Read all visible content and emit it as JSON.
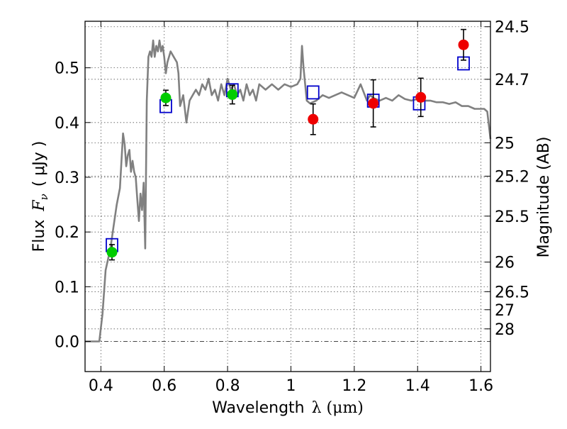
{
  "chart_data": {
    "type": "line",
    "xlabel": "Wavelength",
    "xlabel_math": "λ (μm)",
    "ylabel": "Flux",
    "ylabel_math": "F",
    "ylabel_math_sub": "ν",
    "ylabel_units": "( μJy )",
    "ylabel_right": "Magnitude (AB)",
    "xlim": [
      0.35,
      1.63
    ],
    "ylim": [
      -0.055,
      0.585
    ],
    "x_ticks": [
      0.4,
      0.6,
      0.8,
      1.0,
      1.2,
      1.4,
      1.6
    ],
    "x_tick_labels": [
      "0.4",
      "0.6",
      "0.8",
      "1",
      "1.2",
      "1.4",
      "1.6"
    ],
    "y_ticks": [
      0.0,
      0.1,
      0.2,
      0.3,
      0.4,
      0.5
    ],
    "y_tick_labels": [
      "0.0",
      "0.1",
      "0.2",
      "0.3",
      "0.4",
      "0.5"
    ],
    "right_ticks": [
      {
        "label": "24.5",
        "flux": 0.575
      },
      {
        "label": "24.7",
        "flux": 0.479
      },
      {
        "label": "25",
        "flux": 0.363
      },
      {
        "label": "25.2",
        "flux": 0.302
      },
      {
        "label": "25.5",
        "flux": 0.229
      },
      {
        "label": "26",
        "flux": 0.145
      },
      {
        "label": "26.5",
        "flux": 0.091
      },
      {
        "label": "27",
        "flux": 0.058
      },
      {
        "label": "28",
        "flux": 0.023
      }
    ],
    "grid": true,
    "colors": {
      "model": "#808080",
      "model_photometry": "#0000cc",
      "photometry_green": "#00cc00",
      "photometry_red": "#ee0000",
      "errorbar": "#000000",
      "grid": "#555555"
    },
    "series": [
      {
        "name": "model spectrum",
        "style": "line",
        "x": [
          0.35,
          0.395,
          0.405,
          0.415,
          0.43,
          0.44,
          0.45,
          0.46,
          0.465,
          0.47,
          0.475,
          0.48,
          0.485,
          0.49,
          0.495,
          0.5,
          0.505,
          0.51,
          0.515,
          0.52,
          0.525,
          0.53,
          0.535,
          0.54,
          0.545,
          0.55,
          0.555,
          0.56,
          0.565,
          0.57,
          0.575,
          0.58,
          0.585,
          0.59,
          0.595,
          0.6,
          0.605,
          0.61,
          0.62,
          0.63,
          0.64,
          0.645,
          0.65,
          0.66,
          0.67,
          0.675,
          0.68,
          0.69,
          0.7,
          0.71,
          0.72,
          0.73,
          0.74,
          0.75,
          0.76,
          0.77,
          0.78,
          0.79,
          0.8,
          0.81,
          0.82,
          0.83,
          0.84,
          0.85,
          0.86,
          0.87,
          0.88,
          0.89,
          0.9,
          0.92,
          0.94,
          0.96,
          0.98,
          1.0,
          1.02,
          1.03,
          1.035,
          1.04,
          1.05,
          1.06,
          1.08,
          1.1,
          1.12,
          1.14,
          1.16,
          1.18,
          1.2,
          1.22,
          1.24,
          1.25,
          1.26,
          1.28,
          1.3,
          1.32,
          1.34,
          1.36,
          1.38,
          1.4,
          1.42,
          1.44,
          1.46,
          1.48,
          1.5,
          1.52,
          1.54,
          1.56,
          1.58,
          1.6,
          1.61,
          1.62,
          1.63
        ],
        "y": [
          0.0,
          0.0,
          0.05,
          0.13,
          0.17,
          0.21,
          0.25,
          0.28,
          0.33,
          0.38,
          0.36,
          0.32,
          0.34,
          0.35,
          0.31,
          0.33,
          0.31,
          0.3,
          0.26,
          0.22,
          0.27,
          0.24,
          0.29,
          0.17,
          0.44,
          0.52,
          0.53,
          0.52,
          0.55,
          0.52,
          0.54,
          0.53,
          0.55,
          0.53,
          0.54,
          0.52,
          0.49,
          0.51,
          0.53,
          0.52,
          0.51,
          0.49,
          0.43,
          0.45,
          0.4,
          0.42,
          0.44,
          0.45,
          0.46,
          0.45,
          0.47,
          0.46,
          0.48,
          0.45,
          0.46,
          0.44,
          0.47,
          0.45,
          0.48,
          0.46,
          0.47,
          0.45,
          0.46,
          0.44,
          0.47,
          0.45,
          0.46,
          0.44,
          0.47,
          0.46,
          0.47,
          0.46,
          0.47,
          0.465,
          0.47,
          0.48,
          0.54,
          0.5,
          0.44,
          0.435,
          0.44,
          0.45,
          0.445,
          0.45,
          0.455,
          0.45,
          0.445,
          0.47,
          0.44,
          0.45,
          0.445,
          0.44,
          0.445,
          0.44,
          0.45,
          0.443,
          0.44,
          0.443,
          0.44,
          0.44,
          0.437,
          0.437,
          0.434,
          0.437,
          0.43,
          0.43,
          0.425,
          0.425,
          0.425,
          0.42,
          0.37
        ]
      },
      {
        "name": "model photometry",
        "style": "open-square",
        "x": [
          0.435,
          0.605,
          0.815,
          1.07,
          1.26,
          1.405,
          1.545
        ],
        "y": [
          0.176,
          0.43,
          0.459,
          0.455,
          0.44,
          0.435,
          0.508
        ]
      },
      {
        "name": "observed (optical)",
        "style": "filled-circle",
        "color": "green",
        "x": [
          0.435,
          0.605,
          0.815
        ],
        "y": [
          0.163,
          0.445,
          0.451
        ],
        "yerr": [
          0.014,
          0.014,
          0.017
        ]
      },
      {
        "name": "observed (near-IR)",
        "style": "filled-circle",
        "color": "red",
        "x": [
          1.07,
          1.26,
          1.41,
          1.545
        ],
        "y": [
          0.406,
          0.435,
          0.446,
          0.542
        ],
        "yerr": [
          0.028,
          0.043,
          0.035,
          0.028
        ]
      }
    ]
  }
}
